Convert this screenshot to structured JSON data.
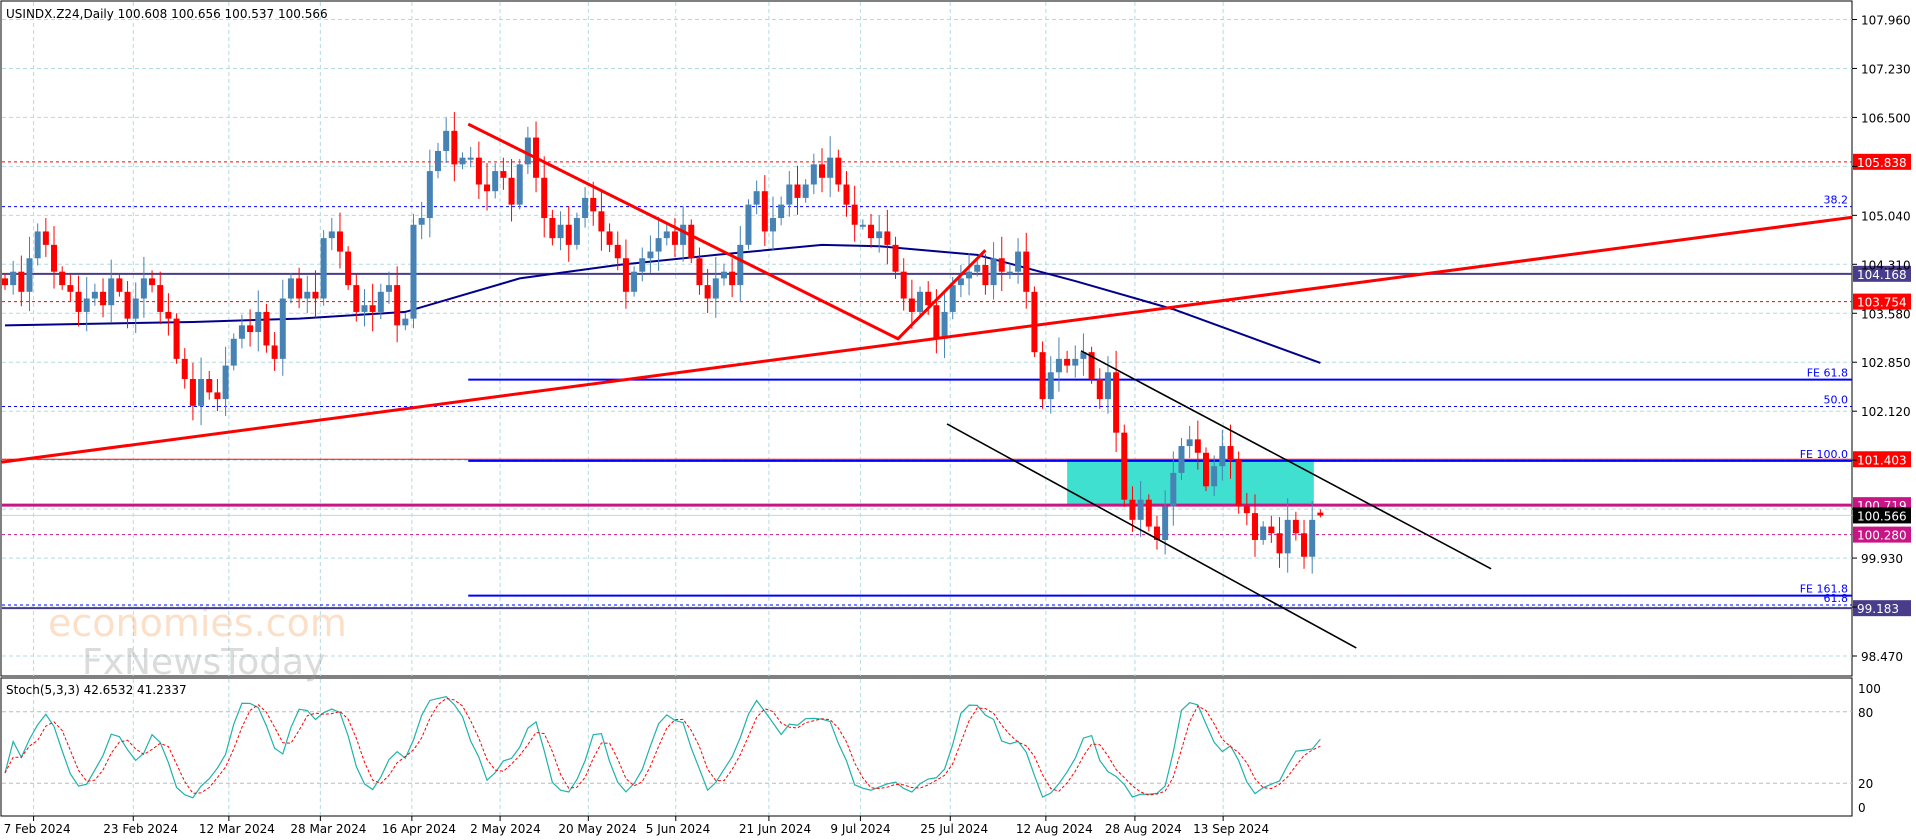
{
  "header": {
    "symbol_line": "USINDX.Z24,Daily  100.608 100.656 100.537 100.566"
  },
  "watermark": {
    "line1": "economies.com",
    "line2": "FxNewsToday"
  },
  "colors": {
    "bull": "#4682B4",
    "bear": "#FF0000",
    "ma": "#00008B",
    "grid": "#B4DCE0",
    "trend": "#FF0000",
    "channel": "#000000",
    "fib": "#0000FF",
    "zone": "#40E0D0",
    "stoch_main": "#20B2AA",
    "stoch_signal": "#FF0000"
  },
  "chart_data": {
    "type": "candlestick",
    "title": "USINDX.Z24, Daily",
    "ylim": [
      98.2,
      108.1
    ],
    "y_ticks": [
      "107.960",
      "107.230",
      "106.500",
      "105.770",
      "105.040",
      "104.310",
      "103.580",
      "102.850",
      "102.120",
      "101.390",
      "100.660",
      "99.930",
      "99.200",
      "98.470"
    ],
    "closes": [
      104.0,
      104.2,
      103.9,
      104.4,
      104.8,
      104.6,
      104.2,
      104.0,
      103.9,
      103.6,
      103.8,
      103.9,
      103.7,
      104.1,
      103.9,
      103.5,
      103.8,
      104.1,
      104.0,
      103.6,
      103.5,
      102.9,
      102.6,
      102.2,
      102.6,
      102.4,
      102.3,
      102.8,
      103.2,
      103.4,
      103.3,
      103.6,
      103.1,
      102.9,
      103.8,
      104.1,
      103.8,
      103.9,
      103.8,
      104.7,
      104.8,
      104.5,
      104.0,
      103.6,
      103.7,
      103.6,
      103.9,
      104.0,
      103.4,
      103.5,
      104.9,
      105.0,
      105.7,
      106.0,
      106.3,
      105.8,
      105.9,
      105.9,
      105.5,
      105.4,
      105.7,
      105.6,
      105.2,
      105.8,
      106.2,
      105.6,
      105.0,
      104.7,
      104.9,
      104.6,
      105.0,
      105.3,
      105.1,
      104.8,
      104.6,
      104.4,
      103.9,
      104.2,
      104.4,
      104.5,
      104.7,
      104.8,
      104.6,
      104.9,
      104.4,
      104.0,
      103.8,
      104.1,
      104.2,
      104.0,
      104.6,
      105.2,
      105.4,
      104.8,
      105.0,
      105.2,
      105.5,
      105.3,
      105.5,
      105.8,
      105.6,
      105.9,
      105.5,
      105.2,
      104.9,
      104.9,
      104.7,
      104.8,
      104.6,
      104.2,
      103.8,
      103.6,
      103.9,
      103.7,
      103.2,
      103.6,
      104.0,
      104.1,
      104.2,
      104.3,
      104.0,
      104.4,
      104.2,
      104.2,
      104.5,
      103.9,
      103.0,
      102.3,
      102.7,
      102.9,
      102.8,
      102.9,
      103.0,
      102.6,
      102.3,
      102.7,
      101.8,
      100.8,
      100.5,
      100.8,
      100.4,
      100.2,
      100.7,
      101.2,
      101.6,
      101.7,
      101.5,
      101.0,
      101.3,
      101.6,
      101.4,
      100.7,
      100.6,
      100.2,
      100.4,
      100.3,
      100.0,
      100.5,
      100.3,
      99.95,
      100.5,
      100.566
    ],
    "last_bar": {
      "open": 100.608,
      "high": 100.656,
      "low": 100.537,
      "close": 100.566
    },
    "moving_average": [
      [
        0,
        103.4
      ],
      [
        23,
        103.45
      ],
      [
        36,
        103.5
      ],
      [
        49,
        103.6
      ],
      [
        63,
        104.1
      ],
      [
        75,
        104.3
      ],
      [
        87,
        104.45
      ],
      [
        100,
        104.6
      ],
      [
        107,
        104.58
      ],
      [
        119,
        104.45
      ],
      [
        131,
        104.06
      ],
      [
        143,
        103.64
      ],
      [
        152,
        103.24
      ],
      [
        161,
        102.84
      ]
    ],
    "x_ticks": [
      {
        "label": "7 Feb 2024",
        "bar": 3.5
      },
      {
        "label": "23 Feb 2024",
        "bar": 15.7
      },
      {
        "label": "12 Mar 2024",
        "bar": 27.4
      },
      {
        "label": "28 Mar 2024",
        "bar": 38.6
      },
      {
        "label": "16 Apr 2024",
        "bar": 49.8
      },
      {
        "label": "2 May 2024",
        "bar": 60.6
      },
      {
        "label": "20 May 2024",
        "bar": 71.4
      },
      {
        "label": "5 Jun 2024",
        "bar": 82.1
      },
      {
        "label": "21 Jun 2024",
        "bar": 93.5
      },
      {
        "label": "9 Jul 2024",
        "bar": 104.7
      },
      {
        "label": "25 Jul 2024",
        "bar": 115.7
      },
      {
        "label": "12 Aug 2024",
        "bar": 127.4
      },
      {
        "label": "28 Aug 2024",
        "bar": 138.3
      },
      {
        "label": "13 Sep 2024",
        "bar": 149.1
      }
    ],
    "levels": [
      {
        "name": "resistance-105838",
        "price": 105.838,
        "label": "105.838",
        "color": "#FF0000",
        "style": "dotted",
        "tag_bg": "#FF0000"
      },
      {
        "name": "fib-38-2",
        "price": 105.17,
        "label": "38.2",
        "color": "#0000FF",
        "style": "dotted"
      },
      {
        "name": "level-104168",
        "price": 104.168,
        "label": "104.168",
        "color": "#483D8B",
        "style": "solid",
        "tag_bg": "#483D8B"
      },
      {
        "name": "resistance-103754",
        "price": 103.754,
        "label": "103.754",
        "color": "#FF0000",
        "style": "dotted",
        "tag_bg": "#FF0000"
      },
      {
        "name": "fib-50",
        "price": 102.19,
        "label": "50.0",
        "color": "#0000FF",
        "style": "dotted"
      },
      {
        "name": "level-101403",
        "price": 101.403,
        "label": "101.403",
        "color": "#FF0000",
        "style": "thin",
        "tag_bg": "#FF0000"
      },
      {
        "name": "level-100719",
        "price": 100.719,
        "label": "100.719",
        "color": "#C71585",
        "style": "thick",
        "tag_bg": "#C71585"
      },
      {
        "name": "bid-line",
        "price": 100.566,
        "label": "100.566",
        "color": "#AEDFE0",
        "style": "thin",
        "tag_bg": "#000000"
      },
      {
        "name": "support-100280",
        "price": 100.28,
        "label": "100.280",
        "color": "#C71585",
        "style": "dotted",
        "tag_bg": "#C71585"
      },
      {
        "name": "fib-61-8",
        "price": 99.23,
        "label": "61.8",
        "color": "#0000FF",
        "style": "dotted"
      },
      {
        "name": "support-99183",
        "price": 99.183,
        "label": "99.183",
        "color": "#483D8B",
        "style": "solid",
        "tag_bg": "#483D8B"
      }
    ],
    "fib_expansions": [
      {
        "label": "FE 61.8",
        "price": 102.59,
        "from_bar": 56.7
      },
      {
        "label": "FE 100.0",
        "price": 101.38,
        "from_bar": 56.7
      },
      {
        "label": "FE 161.8",
        "price": 99.37,
        "from_bar": 56.7
      }
    ],
    "trendlines": [
      {
        "name": "long-uptrend-line",
        "color": "#FF0000",
        "width": 3,
        "points": [
          [
            -0.4,
            101.36
          ],
          [
            226,
            105.01
          ]
        ]
      },
      {
        "name": "zigzag-line",
        "color": "#FF0000",
        "width": 3,
        "points": [
          [
            56.7,
            106.4
          ],
          [
            109.3,
            103.2
          ],
          [
            120,
            104.52
          ]
        ]
      },
      {
        "name": "channel-upper-line",
        "color": "#000000",
        "width": 1.6,
        "points": [
          [
            131.7,
            103.02
          ],
          [
            181.9,
            99.77
          ]
        ]
      },
      {
        "name": "channel-lower-line",
        "color": "#000000",
        "width": 1.6,
        "points": [
          [
            115.3,
            101.93
          ],
          [
            165.4,
            98.59
          ]
        ]
      }
    ],
    "zone": {
      "from_bar": 130,
      "to_bar": 160.2,
      "top": 101.4,
      "bottom": 100.72
    },
    "stochastic": {
      "label": "Stoch(5,3,3) 42.6532 41.2337",
      "k": 5,
      "d": 3,
      "slowing": 3,
      "levels": [
        "100",
        "80",
        "20",
        "0"
      ]
    }
  }
}
